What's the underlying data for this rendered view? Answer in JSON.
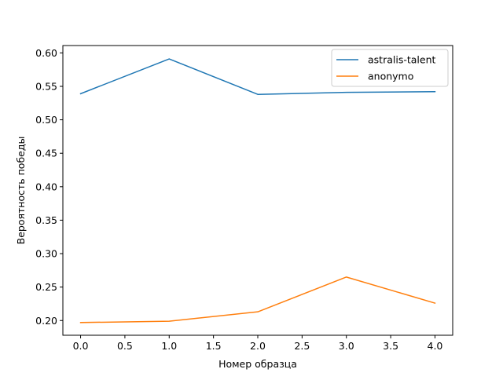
{
  "chart_data": {
    "type": "line",
    "title": "",
    "xlabel": "Номер образца",
    "ylabel": "Вероятность победы",
    "x": [
      0,
      1,
      2,
      3,
      4
    ],
    "series": [
      {
        "name": "astralis-talent",
        "color": "#1f77b4",
        "values": [
          0.539,
          0.591,
          0.538,
          0.541,
          0.542
        ]
      },
      {
        "name": "anonymo",
        "color": "#ff7f0e",
        "values": [
          0.197,
          0.199,
          0.213,
          0.265,
          0.226
        ]
      }
    ],
    "xlim": [
      -0.2,
      4.2
    ],
    "ylim": [
      0.178,
      0.611
    ],
    "xticks": [
      {
        "value": 0.0,
        "label": "0.0"
      },
      {
        "value": 0.5,
        "label": "0.5"
      },
      {
        "value": 1.0,
        "label": "1.0"
      },
      {
        "value": 1.5,
        "label": "1.5"
      },
      {
        "value": 2.0,
        "label": "2.0"
      },
      {
        "value": 2.5,
        "label": "2.5"
      },
      {
        "value": 3.0,
        "label": "3.0"
      },
      {
        "value": 3.5,
        "label": "3.5"
      },
      {
        "value": 4.0,
        "label": "4.0"
      }
    ],
    "yticks": [
      {
        "value": 0.2,
        "label": "0.20"
      },
      {
        "value": 0.25,
        "label": "0.25"
      },
      {
        "value": 0.3,
        "label": "0.30"
      },
      {
        "value": 0.35,
        "label": "0.35"
      },
      {
        "value": 0.4,
        "label": "0.40"
      },
      {
        "value": 0.45,
        "label": "0.45"
      },
      {
        "value": 0.5,
        "label": "0.50"
      },
      {
        "value": 0.55,
        "label": "0.55"
      },
      {
        "value": 0.6,
        "label": "0.60"
      }
    ],
    "grid": false,
    "legend": "top-right"
  }
}
